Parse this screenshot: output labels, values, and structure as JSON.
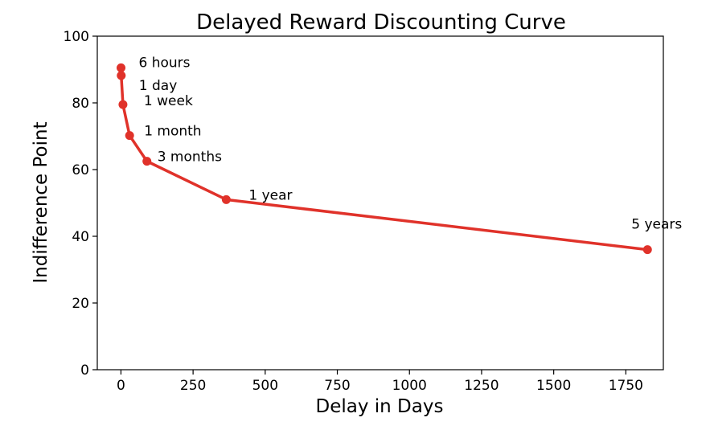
{
  "chart_data": {
    "type": "line",
    "title": "Delayed Reward Discounting Curve",
    "xlabel": "Delay in Days",
    "ylabel": "Indifference Point",
    "xlim": [
      -82,
      1880
    ],
    "ylim": [
      0,
      100
    ],
    "x_ticks": [
      0,
      250,
      500,
      750,
      1000,
      1250,
      1500,
      1750
    ],
    "x_tick_labels": [
      "0",
      "250",
      "500",
      "750",
      "1000",
      "1250",
      "1500",
      "1750"
    ],
    "y_ticks": [
      0,
      20,
      40,
      60,
      80,
      100
    ],
    "y_tick_labels": [
      "0",
      "20",
      "40",
      "60",
      "80",
      "100"
    ],
    "grid": false,
    "series": [
      {
        "color": "#e0322a",
        "points": [
          {
            "x": 0.25,
            "y": 90.5,
            "label": "6 hours"
          },
          {
            "x": 1,
            "y": 88.2,
            "label": "1 day"
          },
          {
            "x": 7,
            "y": 79.5,
            "label": "1 week"
          },
          {
            "x": 30,
            "y": 70.2,
            "label": "1 month"
          },
          {
            "x": 90,
            "y": 62.5,
            "label": "3 months"
          },
          {
            "x": 365,
            "y": 51.0,
            "label": "1 year"
          },
          {
            "x": 1825,
            "y": 36.0,
            "label": "5 years"
          }
        ]
      }
    ]
  }
}
